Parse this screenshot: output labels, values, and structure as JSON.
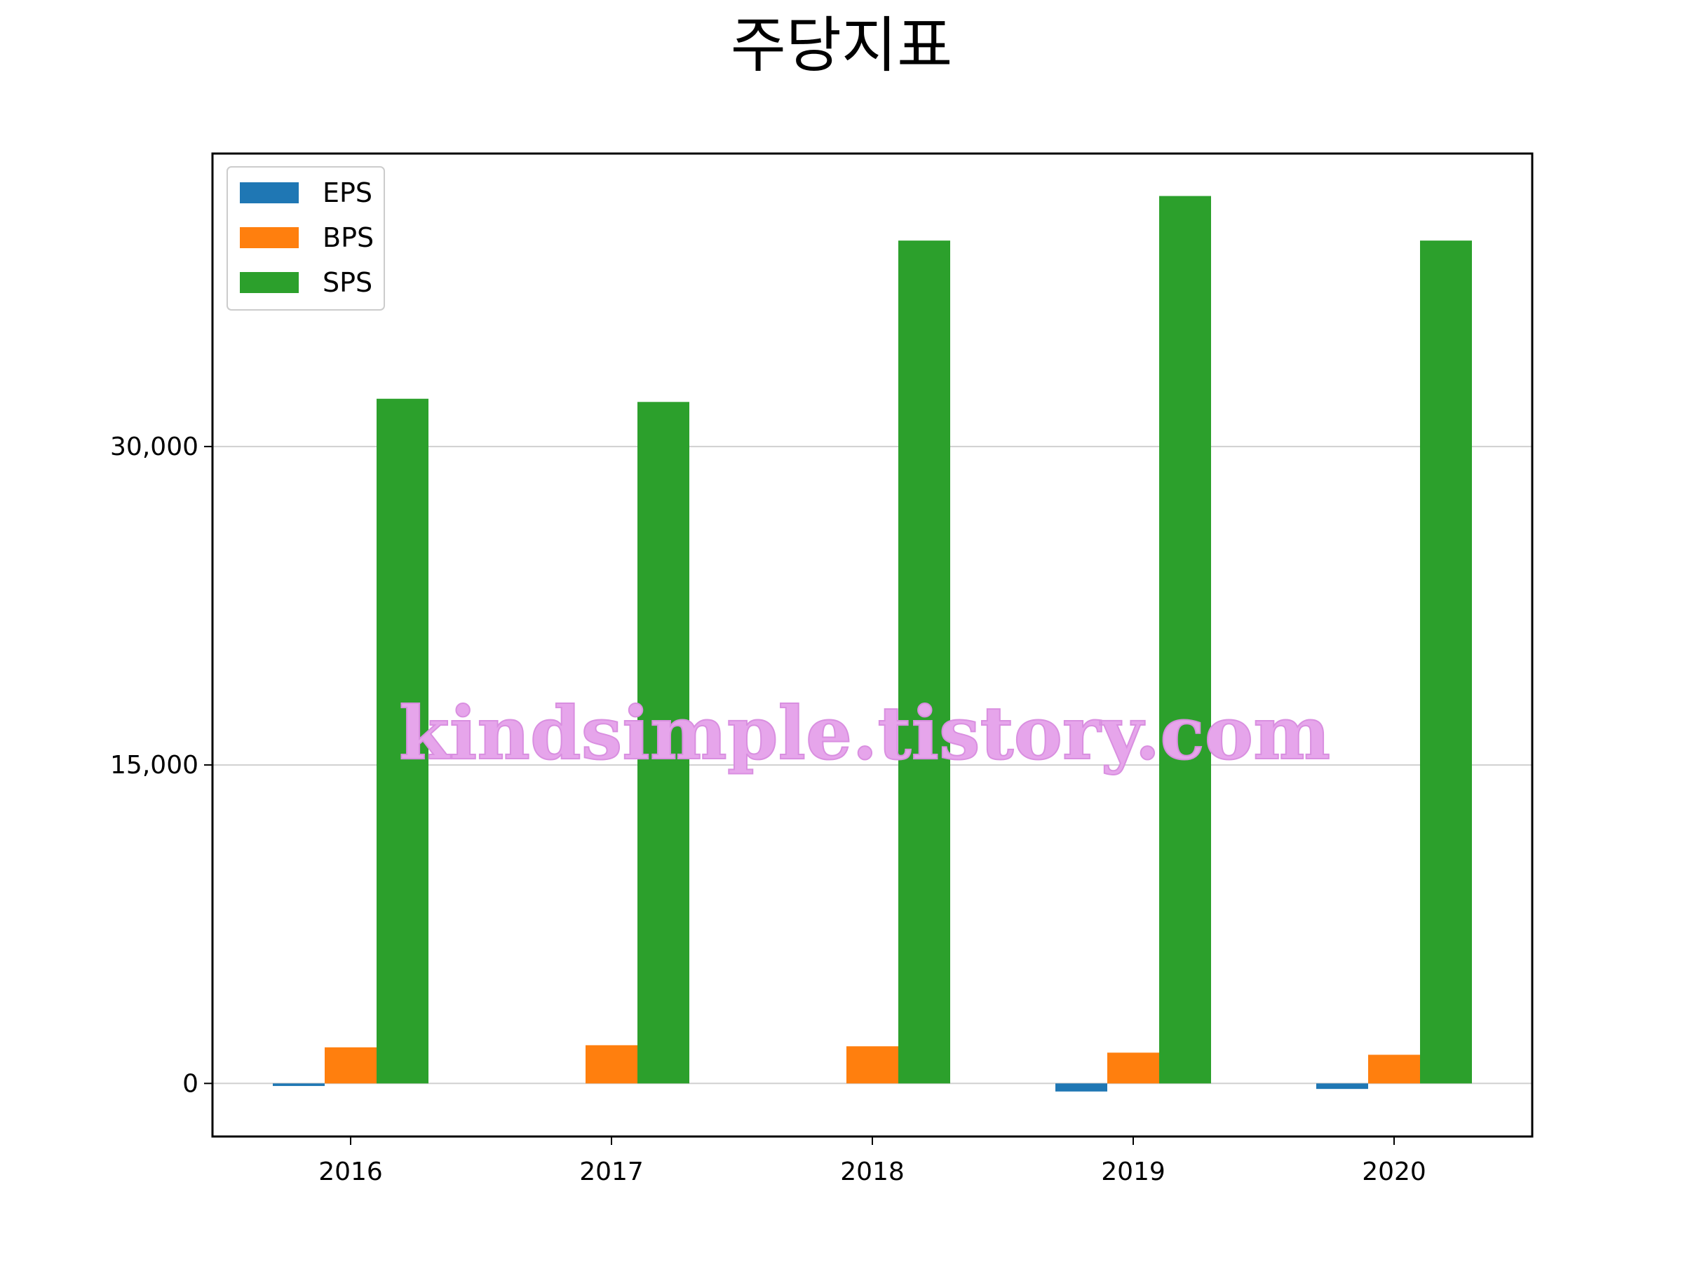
{
  "chart_data": {
    "type": "bar",
    "title": "주당지표",
    "xlabel": "",
    "ylabel": "",
    "categories": [
      "2016",
      "2017",
      "2018",
      "2019",
      "2020"
    ],
    "series": [
      {
        "name": "EPS",
        "color": "#1f77b4",
        "values": [
          -120,
          0,
          0,
          -380,
          -260
        ]
      },
      {
        "name": "BPS",
        "color": "#ff7f0e",
        "values": [
          1700,
          1800,
          1750,
          1450,
          1350
        ]
      },
      {
        "name": "SPS",
        "color": "#2ca02c",
        "values": [
          32250,
          32100,
          39700,
          41800,
          39700
        ]
      }
    ],
    "yticks": [
      0,
      15000,
      30000
    ],
    "ytick_labels": [
      "0",
      "15,000",
      "30,000"
    ],
    "ylim": [
      -2500,
      43800
    ],
    "grid": "y",
    "legend_position": "top-left",
    "watermark": "kindsimple.tistory.com"
  }
}
